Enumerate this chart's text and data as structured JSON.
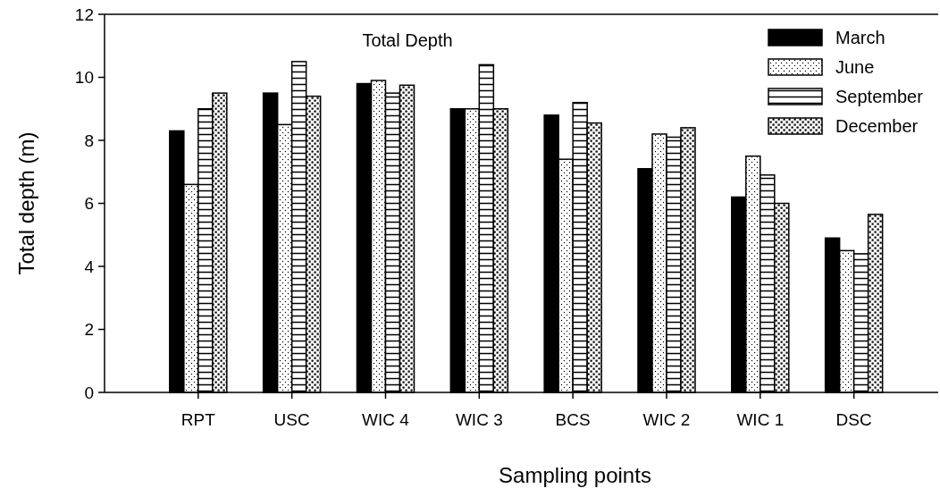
{
  "chart_data": {
    "type": "bar",
    "title": "Total Depth",
    "xlabel": "Sampling points",
    "ylabel": "Total depth (m)",
    "categories": [
      "RPT",
      "USC",
      "WIC 4",
      "WIC 3",
      "BCS",
      "WIC 2",
      "WIC 1",
      "DSC"
    ],
    "series": [
      {
        "name": "March",
        "color": "#000000",
        "values": [
          8.3,
          9.5,
          9.8,
          9.0,
          8.8,
          7.1,
          6.2,
          4.9
        ]
      },
      {
        "name": "June",
        "color": "#ffffff",
        "values": [
          6.6,
          8.5,
          9.9,
          9.0,
          7.4,
          8.2,
          7.5,
          4.5
        ]
      },
      {
        "name": "September",
        "color": "#ffffff",
        "values": [
          9.0,
          10.5,
          9.5,
          10.4,
          9.2,
          8.1,
          6.9,
          4.4
        ]
      },
      {
        "name": "December",
        "color": "#ffffff",
        "values": [
          9.5,
          9.4,
          9.75,
          9.0,
          8.55,
          8.4,
          6.0,
          5.65
        ]
      }
    ],
    "ylim": [
      0,
      12
    ],
    "yticks": [
      0,
      2,
      4,
      6,
      8,
      10,
      12
    ],
    "grid": false,
    "legend": "top right"
  }
}
